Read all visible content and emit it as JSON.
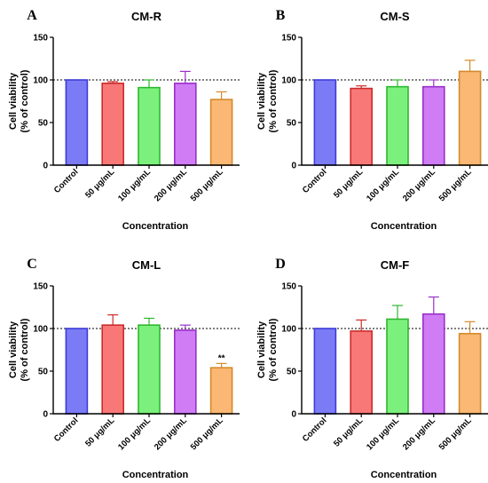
{
  "chart_data": [
    {
      "type": "bar",
      "panel": "A",
      "title": "CM-R",
      "xlabel": "Concentration",
      "ylabel": [
        "Cell viability",
        "(% of control)"
      ],
      "ylim": [
        0,
        150
      ],
      "yticks": [
        "0",
        "50",
        "100",
        "150"
      ],
      "reference_line": 100,
      "categories": [
        "Control",
        "50 μg/mL",
        "100 μg/mL",
        "200 μg/mL",
        "500 μg/mL"
      ],
      "values": [
        100,
        96,
        91,
        96,
        77
      ],
      "errors": [
        0,
        2,
        9,
        14,
        9
      ],
      "annotations": [
        "",
        "",
        "",
        "",
        ""
      ]
    },
    {
      "type": "bar",
      "panel": "B",
      "title": "CM-S",
      "xlabel": "Concentration",
      "ylabel": [
        "Cell viability",
        "(% of control)"
      ],
      "ylim": [
        0,
        150
      ],
      "yticks": [
        "0",
        "50",
        "100",
        "150"
      ],
      "reference_line": 100,
      "categories": [
        "Control",
        "50 μg/mL",
        "100 μg/mL",
        "200 μg/mL",
        "500 μg/mL"
      ],
      "values": [
        100,
        90,
        92,
        92,
        110
      ],
      "errors": [
        0,
        3,
        8,
        8,
        13
      ],
      "annotations": [
        "",
        "",
        "",
        "",
        ""
      ]
    },
    {
      "type": "bar",
      "panel": "C",
      "title": "CM-L",
      "xlabel": "Concentration",
      "ylabel": [
        "Cell viability",
        "(% of control)"
      ],
      "ylim": [
        0,
        150
      ],
      "yticks": [
        "0",
        "50",
        "100",
        "150"
      ],
      "reference_line": 100,
      "categories": [
        "Control",
        "50 μg/mL",
        "100 μg/mL",
        "200 μg/mL",
        "500 μg/mL"
      ],
      "values": [
        100,
        104,
        104,
        98,
        54
      ],
      "errors": [
        0,
        12,
        8,
        6,
        5
      ],
      "annotations": [
        "",
        "",
        "",
        "",
        "**"
      ]
    },
    {
      "type": "bar",
      "panel": "D",
      "title": "CM-F",
      "xlabel": "Concentration",
      "ylabel": [
        "Cell viability",
        "(% of control)"
      ],
      "ylim": [
        0,
        150
      ],
      "yticks": [
        "0",
        "50",
        "100",
        "150"
      ],
      "reference_line": 100,
      "categories": [
        "Control",
        "50 μg/mL",
        "100 μg/mL",
        "200 μg/mL",
        "500 μg/mL"
      ],
      "values": [
        100,
        97,
        111,
        117,
        94
      ],
      "errors": [
        0,
        13,
        16,
        20,
        14
      ],
      "annotations": [
        "",
        "",
        "",
        "",
        ""
      ]
    }
  ],
  "colors": {
    "fills": [
      "#7b7bf5",
      "#f87878",
      "#7cf07c",
      "#cf7cf5",
      "#fbb874"
    ],
    "strokes": [
      "#3c3cd8",
      "#cc2b2b",
      "#2eb82e",
      "#9a30c8",
      "#d48a2c"
    ]
  }
}
